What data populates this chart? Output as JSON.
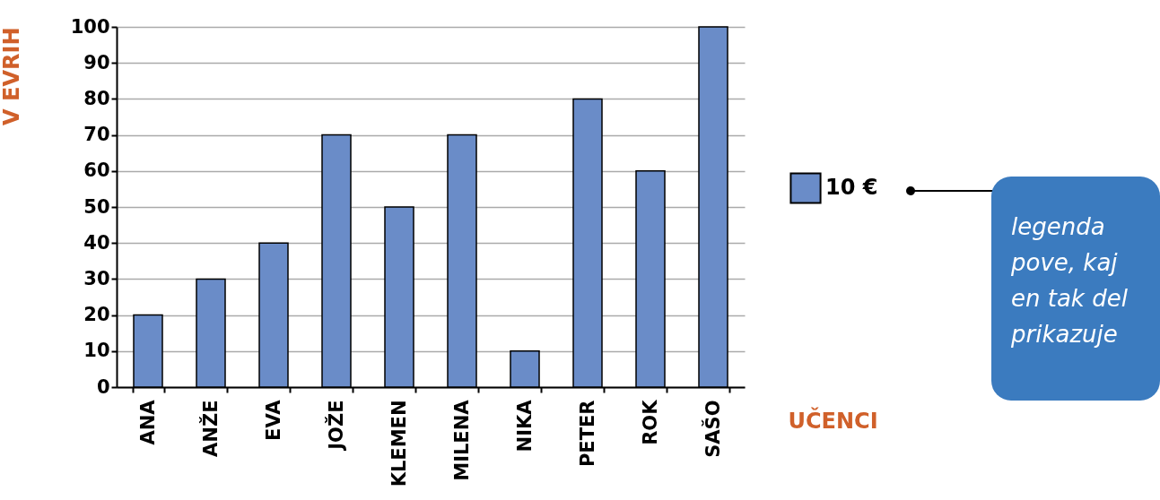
{
  "chart_data": {
    "type": "bar",
    "xlabel": "UČENCI",
    "ylabel": "V EVRIH",
    "categories": [
      "ANA",
      "ANŽE",
      "EVA",
      "JOŽE",
      "KLEMEN",
      "MILENA",
      "NIKA",
      "PETER",
      "ROK",
      "SAŠO"
    ],
    "series": [
      {
        "name": "10 €",
        "color": "#6a8cc8",
        "values": [
          20,
          30,
          40,
          70,
          50,
          70,
          10,
          80,
          60,
          100
        ]
      }
    ],
    "ylim": [
      0,
      100
    ],
    "yticks": [
      0,
      10,
      20,
      30,
      40,
      50,
      60,
      70,
      80,
      90,
      100
    ],
    "grid": "y",
    "legend": "right",
    "annotations": [
      "legenda pove, kaj en tak del prikazuje"
    ]
  }
}
